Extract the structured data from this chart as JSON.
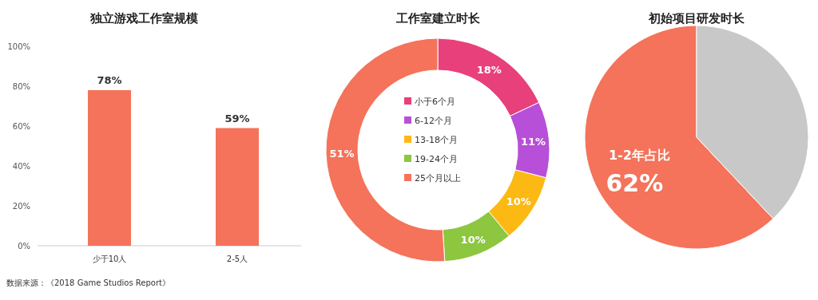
{
  "chart_data": [
    {
      "type": "bar",
      "title": "独立游戏工作室规模",
      "categories": [
        "少于10人",
        "2-5人"
      ],
      "values": [
        78,
        59
      ],
      "color": "#f4735a",
      "value_labels": [
        "78%",
        "59%"
      ],
      "ylim": [
        0,
        100
      ],
      "yticks": [
        {
          "value": 0,
          "label": "0%"
        },
        {
          "value": 20,
          "label": "20%"
        },
        {
          "value": 40,
          "label": "40%"
        },
        {
          "value": 60,
          "label": "60%"
        },
        {
          "value": 80,
          "label": "80%"
        },
        {
          "value": 100,
          "label": "100%"
        }
      ],
      "annotations": [
        "数据来源：《2018 Game Studios Report》"
      ]
    },
    {
      "type": "donut",
      "title": "工作室建立时长",
      "categories": [
        "小于6个月",
        "6-12个月",
        "13-18个月",
        "19-24个月",
        "25个月以上"
      ],
      "values": [
        18,
        11,
        10,
        10,
        51
      ],
      "colors": [
        "#e8407a",
        "#b84fd8",
        "#fdb913",
        "#8dc63f",
        "#f4735a"
      ],
      "value_labels": [
        "18%",
        "11%",
        "10%",
        "10%",
        "51%"
      ],
      "legend": "center"
    },
    {
      "type": "pie",
      "title": "初始项目研发时长",
      "categories": [
        "1-2年占比",
        null
      ],
      "values": [
        62,
        38
      ],
      "colors": [
        "#f4735a",
        "#c8c8c8"
      ],
      "value_labels": [
        "62%",
        null
      ]
    }
  ]
}
